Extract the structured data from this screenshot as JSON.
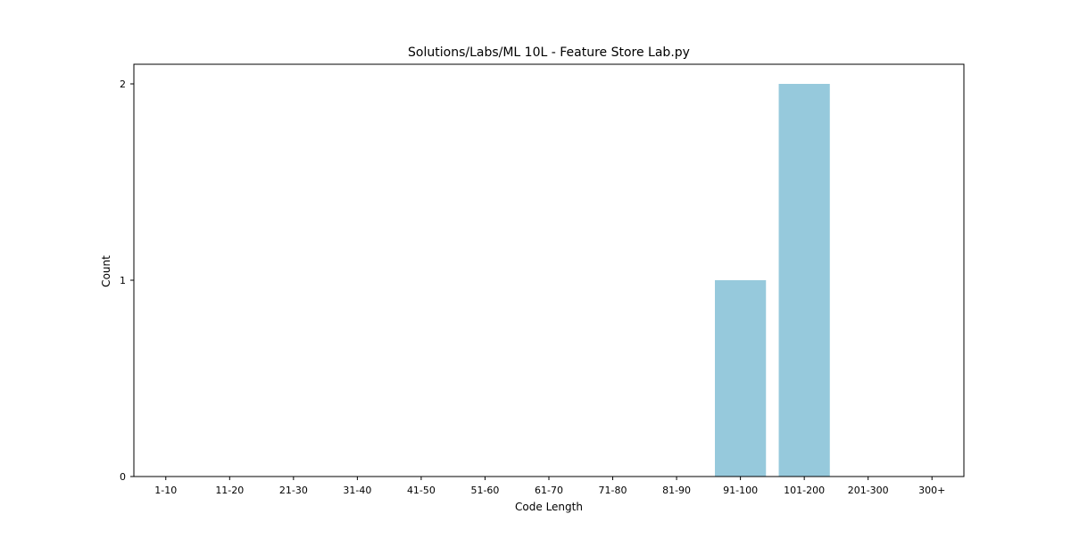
{
  "chart_data": {
    "type": "bar",
    "title": "Solutions/Labs/ML 10L - Feature Store Lab.py",
    "xlabel": "Code Length",
    "ylabel": "Count",
    "categories": [
      "1-10",
      "11-20",
      "21-30",
      "31-40",
      "41-50",
      "51-60",
      "61-70",
      "71-80",
      "81-90",
      "91-100",
      "101-200",
      "201-300",
      "300+"
    ],
    "values": [
      0,
      0,
      0,
      0,
      0,
      0,
      0,
      0,
      0,
      1,
      2,
      0,
      0
    ],
    "ylim": [
      0,
      2.1
    ],
    "yticks": [
      0,
      1,
      2
    ],
    "grid": false,
    "bar_color": "#96c9dc"
  }
}
